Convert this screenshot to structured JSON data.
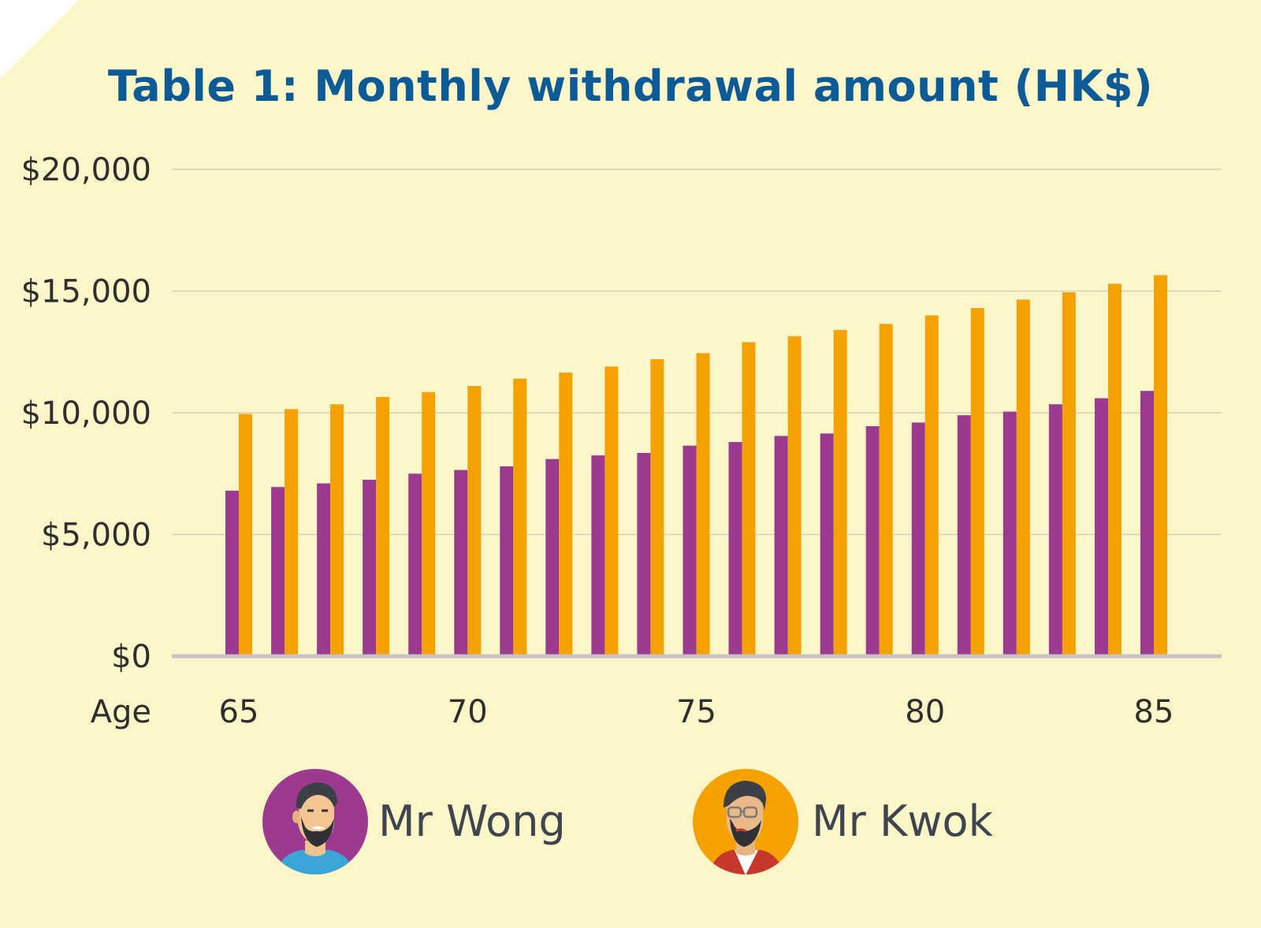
{
  "chart_data": {
    "type": "bar",
    "title": "Table 1: Monthly withdrawal amount (HK$)",
    "xlabel": "Age",
    "ylabel": "",
    "ylim": [
      0,
      20000
    ],
    "yticks": [
      {
        "value": 0,
        "label": "$0"
      },
      {
        "value": 5000,
        "label": "$5,000"
      },
      {
        "value": 10000,
        "label": "$10,000"
      },
      {
        "value": 15000,
        "label": "$15,000"
      },
      {
        "value": 20000,
        "label": "$20,000"
      }
    ],
    "categories": [
      65,
      66,
      67,
      68,
      69,
      70,
      71,
      72,
      73,
      74,
      75,
      76,
      77,
      78,
      79,
      80,
      81,
      82,
      83,
      84,
      85
    ],
    "xtick_labels": [
      {
        "category": 65,
        "label": "65"
      },
      {
        "category": 70,
        "label": "70"
      },
      {
        "category": 75,
        "label": "75"
      },
      {
        "category": 80,
        "label": "80"
      },
      {
        "category": 85,
        "label": "85"
      }
    ],
    "series": [
      {
        "name": "Mr Wong",
        "color": "#9b3a8f",
        "values": [
          6800,
          6950,
          7100,
          7250,
          7500,
          7650,
          7800,
          8100,
          8250,
          8350,
          8650,
          8800,
          9050,
          9150,
          9450,
          9600,
          9900,
          10050,
          10350,
          10600,
          10900
        ]
      },
      {
        "name": "Mr Kwok",
        "color": "#f5a100",
        "values": [
          9950,
          10150,
          10350,
          10650,
          10850,
          11100,
          11400,
          11650,
          11900,
          12200,
          12450,
          12900,
          13150,
          13400,
          13650,
          14000,
          14300,
          14650,
          14950,
          15300,
          15650
        ]
      }
    ],
    "grid": true,
    "legend_position": "bottom"
  },
  "colors": {
    "background": "#fdf6c9",
    "title": "#0c5a96",
    "gridline": "#d6d0b8",
    "baseline": "#c5c5c5",
    "axis_text": "#2e2e2e",
    "legend_text": "#3e4550"
  },
  "legend": [
    {
      "label": "Mr Wong",
      "icon": "man-with-beard-avatar-icon",
      "circle_color": "#9b3a8f"
    },
    {
      "label": "Mr Kwok",
      "icon": "man-with-glasses-avatar-icon",
      "circle_color": "#f5a100"
    }
  ]
}
